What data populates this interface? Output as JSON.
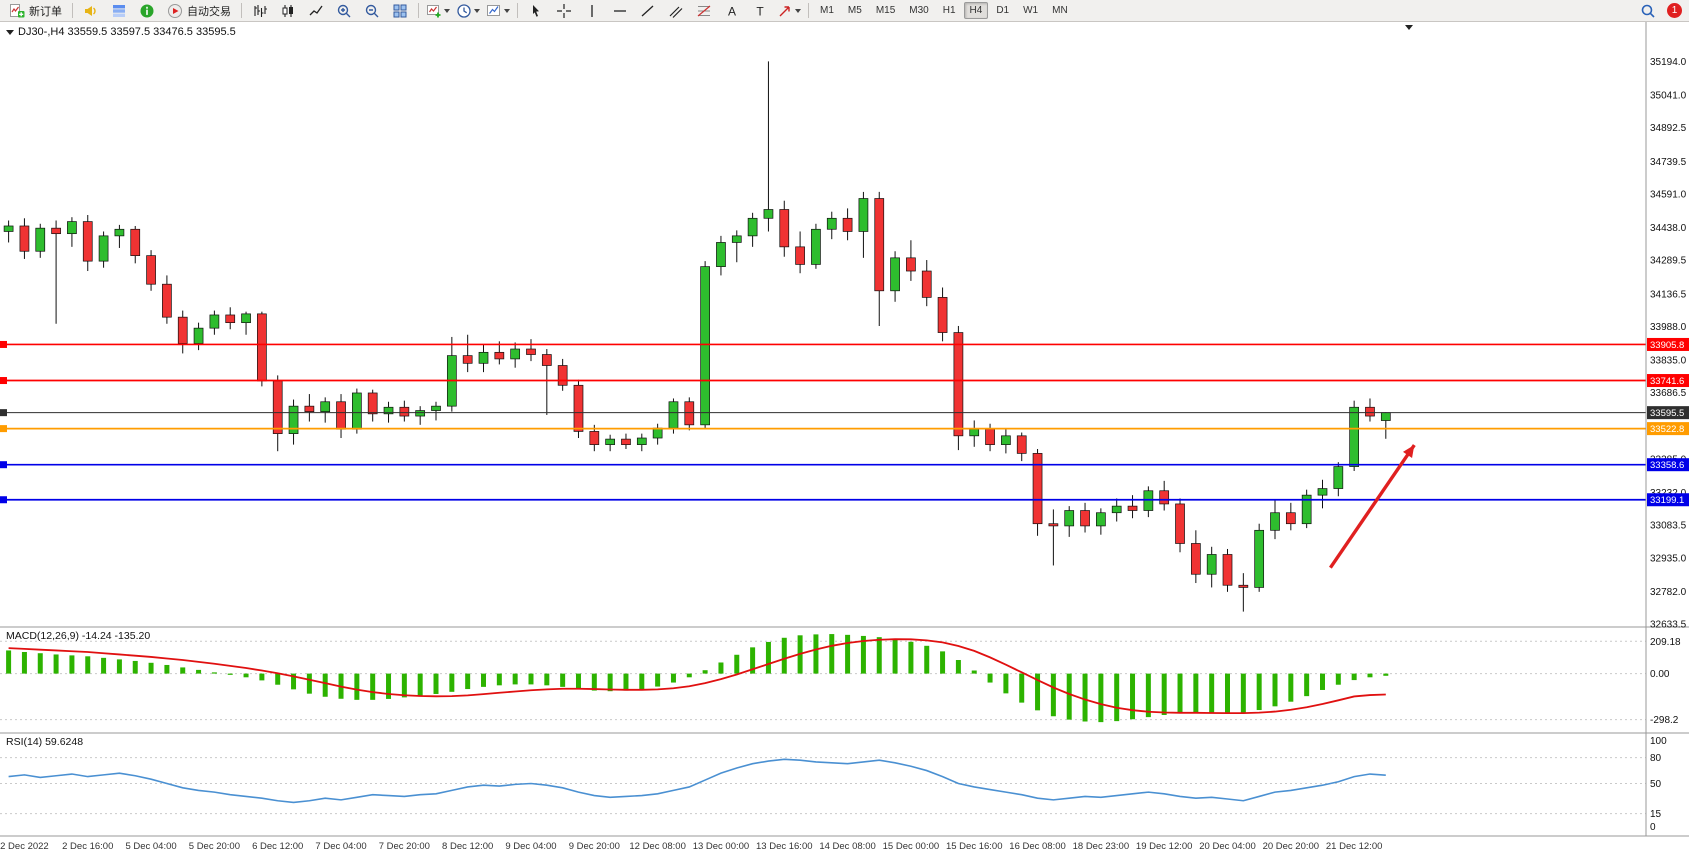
{
  "toolbar": {
    "new_order": "新订单",
    "auto_trading": "自动交易",
    "timeframes": [
      "M1",
      "M5",
      "M15",
      "M30",
      "H1",
      "H4",
      "D1",
      "W1",
      "MN"
    ],
    "active_timeframe": "H4",
    "notification_count": "1"
  },
  "icons": {
    "text_tool_glyph": "A",
    "label_tool_glyph": "T"
  },
  "chart": {
    "title": "DJ30-,H4 33559.5 33597.5 33476.5 33595.5",
    "symbol": "DJ30-",
    "timeframe": "H4",
    "ohlc": {
      "open": "33559.5",
      "high": "33597.5",
      "low": "33476.5",
      "close": "33595.5"
    }
  },
  "indicators": {
    "macd_label": "MACD(12,26,9) -14.24 -135.20",
    "rsi_label": "RSI(14) 59.6248"
  },
  "chart_data": {
    "type": "candlestick",
    "symbol": "DJ30-",
    "period": "H4",
    "colors": {
      "bull": "#2ebd2e",
      "bear": "#f03333",
      "macd_hist": "#2db300",
      "macd_signal": "#e01010",
      "rsi_line": "#4a90d2",
      "arrow": "#e02020"
    },
    "price_axis_labels": [
      "35194.0",
      "35041.0",
      "34892.5",
      "34739.5",
      "34591.0",
      "34438.0",
      "34289.5",
      "34136.5",
      "33988.0",
      "33835.0",
      "33686.5",
      "33533.5",
      "33385.0",
      "33232.0",
      "33083.5",
      "32935.0",
      "32782.0",
      "32633.5"
    ],
    "hlines": [
      {
        "price": 33905.8,
        "color": "#ff0000",
        "label": "33905.8"
      },
      {
        "price": 33741.6,
        "color": "#ff0000",
        "label": "33741.6"
      },
      {
        "price": 33595.5,
        "color": "#2f2f2f",
        "label": "33595.5",
        "width": 1
      },
      {
        "price": 33522.8,
        "color": "#ff9c00",
        "label": "33522.8"
      },
      {
        "price": 33358.6,
        "color": "#0000e8",
        "label": "33358.6"
      },
      {
        "price": 33199.1,
        "color": "#0000e8",
        "label": "33199.1"
      }
    ],
    "time_labels": [
      {
        "index": 1,
        "label": "2 Dec 2022"
      },
      {
        "index": 5,
        "label": "2 Dec 16:00"
      },
      {
        "index": 9,
        "label": "5 Dec 04:00"
      },
      {
        "index": 13,
        "label": "5 Dec 20:00"
      },
      {
        "index": 17,
        "label": "6 Dec 12:00"
      },
      {
        "index": 21,
        "label": "7 Dec 04:00"
      },
      {
        "index": 25,
        "label": "7 Dec 20:00"
      },
      {
        "index": 29,
        "label": "8 Dec 12:00"
      },
      {
        "index": 33,
        "label": "9 Dec 04:00"
      },
      {
        "index": 37,
        "label": "9 Dec 20:00"
      },
      {
        "index": 41,
        "label": "12 Dec 08:00"
      },
      {
        "index": 45,
        "label": "13 Dec 00:00"
      },
      {
        "index": 49,
        "label": "13 Dec 16:00"
      },
      {
        "index": 53,
        "label": "14 Dec 08:00"
      },
      {
        "index": 57,
        "label": "15 Dec 00:00"
      },
      {
        "index": 61,
        "label": "15 Dec 16:00"
      },
      {
        "index": 65,
        "label": "16 Dec 08:00"
      },
      {
        "index": 69,
        "label": "18 Dec 23:00"
      },
      {
        "index": 73,
        "label": "19 Dec 12:00"
      },
      {
        "index": 77,
        "label": "20 Dec 04:00"
      },
      {
        "index": 81,
        "label": "20 Dec 20:00"
      },
      {
        "index": 85,
        "label": "21 Dec 12:00"
      }
    ],
    "candles": [
      [
        34420,
        34470,
        34370,
        34445
      ],
      [
        34445,
        34480,
        34295,
        34330
      ],
      [
        34330,
        34455,
        34300,
        34435
      ],
      [
        34435,
        34470,
        34000,
        34410
      ],
      [
        34410,
        34485,
        34350,
        34465
      ],
      [
        34465,
        34495,
        34240,
        34285
      ],
      [
        34285,
        34420,
        34255,
        34400
      ],
      [
        34400,
        34450,
        34345,
        34430
      ],
      [
        34430,
        34445,
        34275,
        34310
      ],
      [
        34310,
        34335,
        34150,
        34180
      ],
      [
        34180,
        34220,
        34000,
        34030
      ],
      [
        34030,
        34060,
        33865,
        33910
      ],
      [
        33910,
        34005,
        33880,
        33980
      ],
      [
        33980,
        34060,
        33950,
        34040
      ],
      [
        34040,
        34075,
        33975,
        34005
      ],
      [
        34005,
        34055,
        33950,
        34045
      ],
      [
        34045,
        34055,
        33715,
        33740
      ],
      [
        33740,
        33765,
        33420,
        33500
      ],
      [
        33500,
        33655,
        33450,
        33625
      ],
      [
        33625,
        33680,
        33555,
        33600
      ],
      [
        33600,
        33665,
        33550,
        33645
      ],
      [
        33645,
        33680,
        33480,
        33520
      ],
      [
        33520,
        33705,
        33500,
        33685
      ],
      [
        33685,
        33700,
        33555,
        33590
      ],
      [
        33590,
        33645,
        33550,
        33620
      ],
      [
        33620,
        33650,
        33555,
        33580
      ],
      [
        33580,
        33625,
        33540,
        33605
      ],
      [
        33605,
        33645,
        33560,
        33625
      ],
      [
        33625,
        33940,
        33600,
        33855
      ],
      [
        33855,
        33950,
        33780,
        33820
      ],
      [
        33820,
        33905,
        33780,
        33870
      ],
      [
        33870,
        33920,
        33815,
        33840
      ],
      [
        33840,
        33915,
        33800,
        33885
      ],
      [
        33885,
        33930,
        33830,
        33860
      ],
      [
        33860,
        33885,
        33585,
        33810
      ],
      [
        33810,
        33840,
        33695,
        33720
      ],
      [
        33720,
        33745,
        33480,
        33510
      ],
      [
        33510,
        33540,
        33420,
        33450
      ],
      [
        33450,
        33495,
        33420,
        33475
      ],
      [
        33475,
        33500,
        33430,
        33450
      ],
      [
        33450,
        33500,
        33420,
        33480
      ],
      [
        33480,
        33545,
        33450,
        33525
      ],
      [
        33525,
        33660,
        33500,
        33645
      ],
      [
        33645,
        33665,
        33515,
        33540
      ],
      [
        33540,
        34285,
        33520,
        34260
      ],
      [
        34260,
        34400,
        34220,
        34370
      ],
      [
        34370,
        34425,
        34280,
        34400
      ],
      [
        34400,
        34505,
        34350,
        34480
      ],
      [
        34480,
        35194,
        34420,
        34520
      ],
      [
        34520,
        34560,
        34305,
        34350
      ],
      [
        34350,
        34420,
        34230,
        34270
      ],
      [
        34270,
        34455,
        34250,
        34430
      ],
      [
        34430,
        34510,
        34385,
        34480
      ],
      [
        34480,
        34525,
        34380,
        34420
      ],
      [
        34420,
        34600,
        34300,
        34570
      ],
      [
        34570,
        34600,
        33990,
        34150
      ],
      [
        34150,
        34330,
        34100,
        34300
      ],
      [
        34300,
        34380,
        34195,
        34240
      ],
      [
        34240,
        34290,
        34080,
        34120
      ],
      [
        34120,
        34165,
        33920,
        33960
      ],
      [
        33960,
        33990,
        33425,
        33490
      ],
      [
        33490,
        33560,
        33440,
        33520
      ],
      [
        33520,
        33545,
        33420,
        33450
      ],
      [
        33450,
        33520,
        33410,
        33490
      ],
      [
        33490,
        33505,
        33375,
        33410
      ],
      [
        33410,
        33430,
        33035,
        33090
      ],
      [
        33090,
        33155,
        32900,
        33080
      ],
      [
        33080,
        33170,
        33030,
        33150
      ],
      [
        33150,
        33185,
        33050,
        33080
      ],
      [
        33080,
        33160,
        33040,
        33140
      ],
      [
        33140,
        33205,
        33100,
        33170
      ],
      [
        33170,
        33220,
        33115,
        33150
      ],
      [
        33150,
        33260,
        33120,
        33240
      ],
      [
        33240,
        33285,
        33150,
        33180
      ],
      [
        33180,
        33205,
        32960,
        33000
      ],
      [
        33000,
        33060,
        32820,
        32860
      ],
      [
        32860,
        32985,
        32800,
        32950
      ],
      [
        32950,
        32975,
        32780,
        32810
      ],
      [
        32810,
        32865,
        32690,
        32800
      ],
      [
        32800,
        33090,
        32780,
        33060
      ],
      [
        33060,
        33200,
        33020,
        33140
      ],
      [
        33140,
        33185,
        33060,
        33090
      ],
      [
        33090,
        33245,
        33070,
        33220
      ],
      [
        33220,
        33290,
        33160,
        33250
      ],
      [
        33250,
        33370,
        33215,
        33350
      ],
      [
        33350,
        33650,
        33330,
        33620
      ],
      [
        33620,
        33660,
        33555,
        33580
      ],
      [
        33559.5,
        33597.5,
        33476.5,
        33595.5
      ]
    ],
    "macd": {
      "label": "MACD(12,26,9) -14.24 -135.20",
      "axis_values": [
        209.18,
        0,
        -298.2
      ],
      "axis_labels": [
        "209.18",
        "0.00",
        "-298.2"
      ],
      "histogram": [
        150,
        140,
        132,
        124,
        118,
        112,
        102,
        92,
        82,
        70,
        56,
        40,
        24,
        8,
        -8,
        -24,
        -44,
        -72,
        -102,
        -130,
        -150,
        -163,
        -170,
        -170,
        -164,
        -154,
        -144,
        -132,
        -118,
        -100,
        -86,
        -76,
        -70,
        -70,
        -76,
        -86,
        -100,
        -110,
        -114,
        -110,
        -100,
        -84,
        -58,
        -24,
        22,
        72,
        122,
        170,
        205,
        232,
        248,
        254,
        256,
        251,
        244,
        236,
        224,
        206,
        180,
        144,
        88,
        20,
        -58,
        -128,
        -188,
        -238,
        -276,
        -298,
        -310,
        -314,
        -308,
        -296,
        -282,
        -268,
        -258,
        -253,
        -253,
        -258,
        -252,
        -236,
        -212,
        -182,
        -146,
        -106,
        -72,
        -42,
        -24,
        -14.24
      ],
      "signal": [
        165,
        160,
        155,
        150,
        145,
        140,
        132,
        124,
        116,
        108,
        98,
        88,
        76,
        64,
        50,
        36,
        20,
        2,
        -18,
        -40,
        -62,
        -84,
        -104,
        -120,
        -132,
        -140,
        -145,
        -147,
        -146,
        -141,
        -133,
        -124,
        -116,
        -108,
        -102,
        -98,
        -98,
        -100,
        -103,
        -105,
        -105,
        -102,
        -95,
        -82,
        -62,
        -36,
        -6,
        28,
        62,
        96,
        128,
        156,
        180,
        198,
        211,
        219,
        223,
        222,
        215,
        202,
        179,
        147,
        105,
        58,
        8,
        -42,
        -90,
        -132,
        -168,
        -198,
        -221,
        -237,
        -247,
        -252,
        -254,
        -254,
        -255,
        -256,
        -256,
        -253,
        -246,
        -234,
        -218,
        -197,
        -173,
        -148,
        -139,
        -135.2
      ]
    },
    "rsi": {
      "label": "RSI(14) 59.6248",
      "axis_labels": [
        "100",
        "80",
        "50",
        "15",
        "0"
      ],
      "levels": [
        80,
        50,
        15
      ],
      "values": [
        58,
        60,
        57,
        59,
        61,
        58,
        60,
        62,
        59,
        55,
        50,
        45,
        42,
        40,
        37,
        35,
        33,
        30,
        28,
        30,
        33,
        31,
        34,
        37,
        36,
        35,
        37,
        38,
        42,
        46,
        48,
        47,
        49,
        50,
        48,
        45,
        40,
        36,
        34,
        35,
        36,
        38,
        42,
        46,
        54,
        62,
        68,
        73,
        76,
        78,
        77,
        75,
        74,
        73,
        75,
        77,
        74,
        70,
        65,
        58,
        50,
        46,
        43,
        40,
        37,
        33,
        31,
        33,
        35,
        34,
        36,
        38,
        40,
        38,
        35,
        33,
        34,
        32,
        30,
        35,
        40,
        42,
        45,
        48,
        52,
        58,
        61,
        59.6
      ]
    },
    "arrow": {
      "from_bar": 83.5,
      "from_price": 32890,
      "to_bar": 88.8,
      "to_price": 33448,
      "color": "#e02020"
    }
  }
}
